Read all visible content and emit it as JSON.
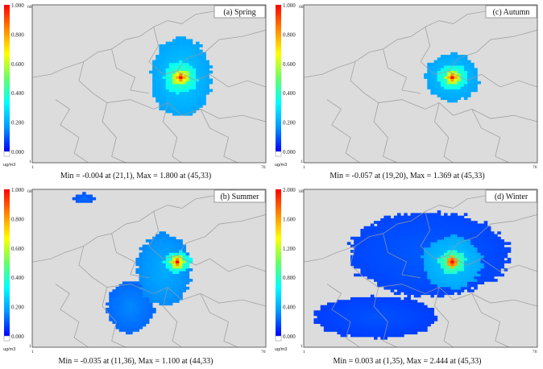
{
  "palette": {
    "background": "#dcdcdc",
    "border_lines": "#9a9a9a",
    "colorbar": [
      "#0000ff",
      "#0099ff",
      "#00ffff",
      "#66ff66",
      "#ffff00",
      "#ff8800",
      "#ff0000"
    ],
    "zero_patch": "#ffffff"
  },
  "unit_label": "ug/m3",
  "x_axis_labels": [
    "1",
    "70"
  ],
  "y_axis_labels": [
    "1",
    "60"
  ],
  "chart_data": [
    {
      "type": "heatmap",
      "title": "(a) Spring",
      "scale_ticks": [
        "1.000",
        "0.800",
        "0.600",
        "0.400",
        "0.200",
        "0.000"
      ],
      "vmin": 0,
      "vmax": 1.0,
      "xlim": [
        1,
        70
      ],
      "ylim": [
        1,
        60
      ],
      "plume": [
        {
          "x": 45,
          "y": 33,
          "rx": 9,
          "ry": 15,
          "value": 0.25
        },
        {
          "x": 45,
          "y": 33,
          "rx": 5,
          "ry": 6,
          "value": 0.45
        },
        {
          "x": 45,
          "y": 33,
          "rx": 2.5,
          "ry": 3,
          "value": 0.75
        },
        {
          "x": 45,
          "y": 33,
          "rx": 1.2,
          "ry": 1.5,
          "value": 1.0
        }
      ],
      "caption": "Min = -0.004 at (21,1), Max = 1.800 at (45,33)"
    },
    {
      "type": "heatmap",
      "title": "(c) Autumn",
      "scale_ticks": [
        "1.000",
        "0.800",
        "0.600",
        "0.400",
        "0.200",
        "0.000"
      ],
      "vmin": 0,
      "vmax": 1.0,
      "xlim": [
        1,
        70
      ],
      "ylim": [
        1,
        60
      ],
      "plume": [
        {
          "x": 45,
          "y": 33,
          "rx": 8,
          "ry": 9,
          "value": 0.25
        },
        {
          "x": 45,
          "y": 33,
          "rx": 4.5,
          "ry": 5,
          "value": 0.45
        },
        {
          "x": 45,
          "y": 33,
          "rx": 2.2,
          "ry": 2.5,
          "value": 0.75
        },
        {
          "x": 45,
          "y": 33,
          "rx": 1.1,
          "ry": 1.3,
          "value": 1.0
        }
      ],
      "caption": "Min = -0.057 at (19,20), Max = 1.369 at (45,33)"
    },
    {
      "type": "heatmap",
      "title": "(b) Summer",
      "scale_ticks": [
        "1.000",
        "0.800",
        "0.600",
        "0.400",
        "0.200",
        "0.000"
      ],
      "vmin": 0,
      "vmax": 1.0,
      "xlim": [
        1,
        70
      ],
      "ylim": [
        1,
        60
      ],
      "plume": [
        {
          "x": 40,
          "y": 30,
          "rx": 8,
          "ry": 14,
          "value": 0.2
        },
        {
          "x": 30,
          "y": 16,
          "rx": 7,
          "ry": 10,
          "value": 0.15
        },
        {
          "x": 16,
          "y": 57,
          "rx": 3,
          "ry": 2,
          "value": 0.12
        },
        {
          "x": 44,
          "y": 33,
          "rx": 4,
          "ry": 4,
          "value": 0.45
        },
        {
          "x": 44,
          "y": 33,
          "rx": 2,
          "ry": 2.5,
          "value": 0.75
        },
        {
          "x": 44,
          "y": 33,
          "rx": 1,
          "ry": 1.4,
          "value": 1.0
        }
      ],
      "caption": "Min = -0.035 at (11,36), Max = 1.100 at (44,33)"
    },
    {
      "type": "heatmap",
      "title": "(d) Winter",
      "scale_ticks": [
        "2.000",
        "1.600",
        "1.200",
        "0.800",
        "0.400",
        "0.000"
      ],
      "vmin": 0,
      "vmax": 2.0,
      "xlim": [
        1,
        70
      ],
      "ylim": [
        1,
        60
      ],
      "plume": [
        {
          "x": 38,
          "y": 36,
          "rx": 24,
          "ry": 16,
          "value": 0.2
        },
        {
          "x": 22,
          "y": 12,
          "rx": 18,
          "ry": 8,
          "value": 0.18
        },
        {
          "x": 45,
          "y": 33,
          "rx": 9,
          "ry": 10,
          "value": 0.5
        },
        {
          "x": 45,
          "y": 33,
          "rx": 4,
          "ry": 4.5,
          "value": 1.0
        },
        {
          "x": 45,
          "y": 33,
          "rx": 1.5,
          "ry": 2,
          "value": 2.0
        }
      ],
      "caption": "Min = 0.003 at (1,35), Max = 2.444 at (45,33)"
    }
  ]
}
